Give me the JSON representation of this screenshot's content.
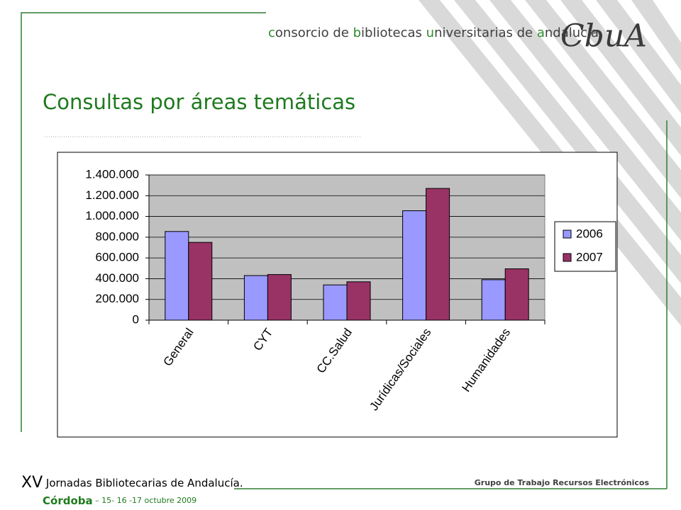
{
  "header": {
    "organization": "consorcio de bibliotecas universitarias de andalucía",
    "logo": "CbuA"
  },
  "chart_data": {
    "type": "bar",
    "title": "Consultas  por áreas temáticas",
    "categories": [
      "General",
      "CYT",
      "CC.Salud",
      "Jurídicas/Sociales",
      "Humanidades"
    ],
    "series": [
      {
        "name": "2006",
        "color": "#9999ff",
        "values": [
          855000,
          430000,
          340000,
          1055000,
          390000
        ]
      },
      {
        "name": "2007",
        "color": "#993366",
        "values": [
          750000,
          440000,
          370000,
          1270000,
          495000
        ]
      }
    ],
    "ylim": [
      0,
      1400000
    ],
    "yticks": [
      0,
      {
        "value": 200000,
        "label": "200.000"
      },
      {
        "value": 400000,
        "label": "400.000"
      },
      {
        "value": 600000,
        "label": "600.000"
      },
      {
        "value": 800000,
        "label": "800.000"
      },
      {
        "value": 1000000,
        "label": "1.000.000"
      },
      {
        "value": 1200000,
        "label": "1.200.000"
      },
      {
        "value": 1400000,
        "label": "1.400.000"
      }
    ],
    "grid": true,
    "legend": "right",
    "plot_background": "#c0c0c0"
  },
  "footer": {
    "edition": "XV",
    "event": " Jornadas Bibliotecarias de Andalucía.",
    "city": "Córdoba",
    "dates": " – 15- 16 -17 octubre 2009",
    "group": "Grupo de Trabajo Recursos Electrónicos"
  }
}
